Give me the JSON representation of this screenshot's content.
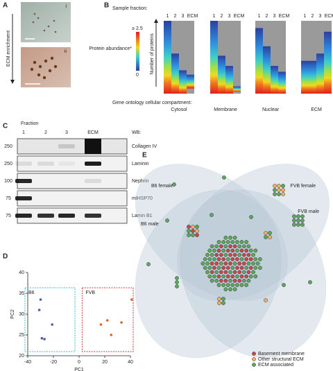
{
  "panel_labels": [
    "A",
    "B",
    "C",
    "D",
    "E"
  ],
  "panel_a": {
    "image_labels": [
      "i",
      "ii"
    ],
    "axis_label": "ECM enrichment"
  },
  "panel_b": {
    "sample_fraction_label": "Sample fraction:",
    "fractions": [
      "1",
      "2",
      "3",
      "ECM"
    ],
    "colorbar_max": "≥ 2.5",
    "colorbar_min": "0",
    "colorbar_label": "Protein abundance*",
    "y_label": "Number of proteins",
    "go_label": "Gene ontology cellular compartment:",
    "compartments": [
      "Cytosol",
      "Membrane",
      "Nuclear",
      "ECM"
    ]
  },
  "panel_c": {
    "fraction_label": "Fraction",
    "fractions": [
      "1",
      "2",
      "3",
      "ECM"
    ],
    "wb_label": "WB:",
    "blots": [
      {
        "marker": "250",
        "antibody": "Collagen IV"
      },
      {
        "marker": "250",
        "antibody": "Laminin"
      },
      {
        "marker": "100",
        "antibody": "Nephrin"
      },
      {
        "marker": "75",
        "antibody": "mtHSP70"
      },
      {
        "marker": "75",
        "antibody": "Lamin B1"
      }
    ]
  },
  "chart_data": {
    "type": "scatter",
    "x_label": "PC1",
    "y_label": "PC2",
    "xlim": [
      -40,
      40
    ],
    "ylim": [
      20,
      40
    ],
    "xticks": [
      -40,
      -20,
      0,
      20,
      40
    ],
    "yticks": [
      20,
      25,
      30,
      35,
      40
    ],
    "series": [
      {
        "name": "B6",
        "color": "#4a5cab",
        "x": [
          -30,
          -31,
          -21,
          -29,
          -27
        ],
        "values": [
          33.5,
          31,
          27.5,
          24.2,
          24
        ]
      },
      {
        "name": "FVB",
        "color": "#d9622b",
        "x": [
          41,
          22,
          17,
          33,
          25
        ],
        "values": [
          33.5,
          28.5,
          27.5,
          28,
          25
        ]
      }
    ]
  },
  "panel_e": {
    "groups": [
      "B6 female",
      "FVB female",
      "B6 male",
      "FVB male"
    ],
    "legend": [
      {
        "label": "Basement membrane",
        "color": "#c9464a"
      },
      {
        "label": "Other structural ECM",
        "color": "#f0b060"
      },
      {
        "label": "ECM associated",
        "color": "#5aa85a"
      }
    ]
  }
}
